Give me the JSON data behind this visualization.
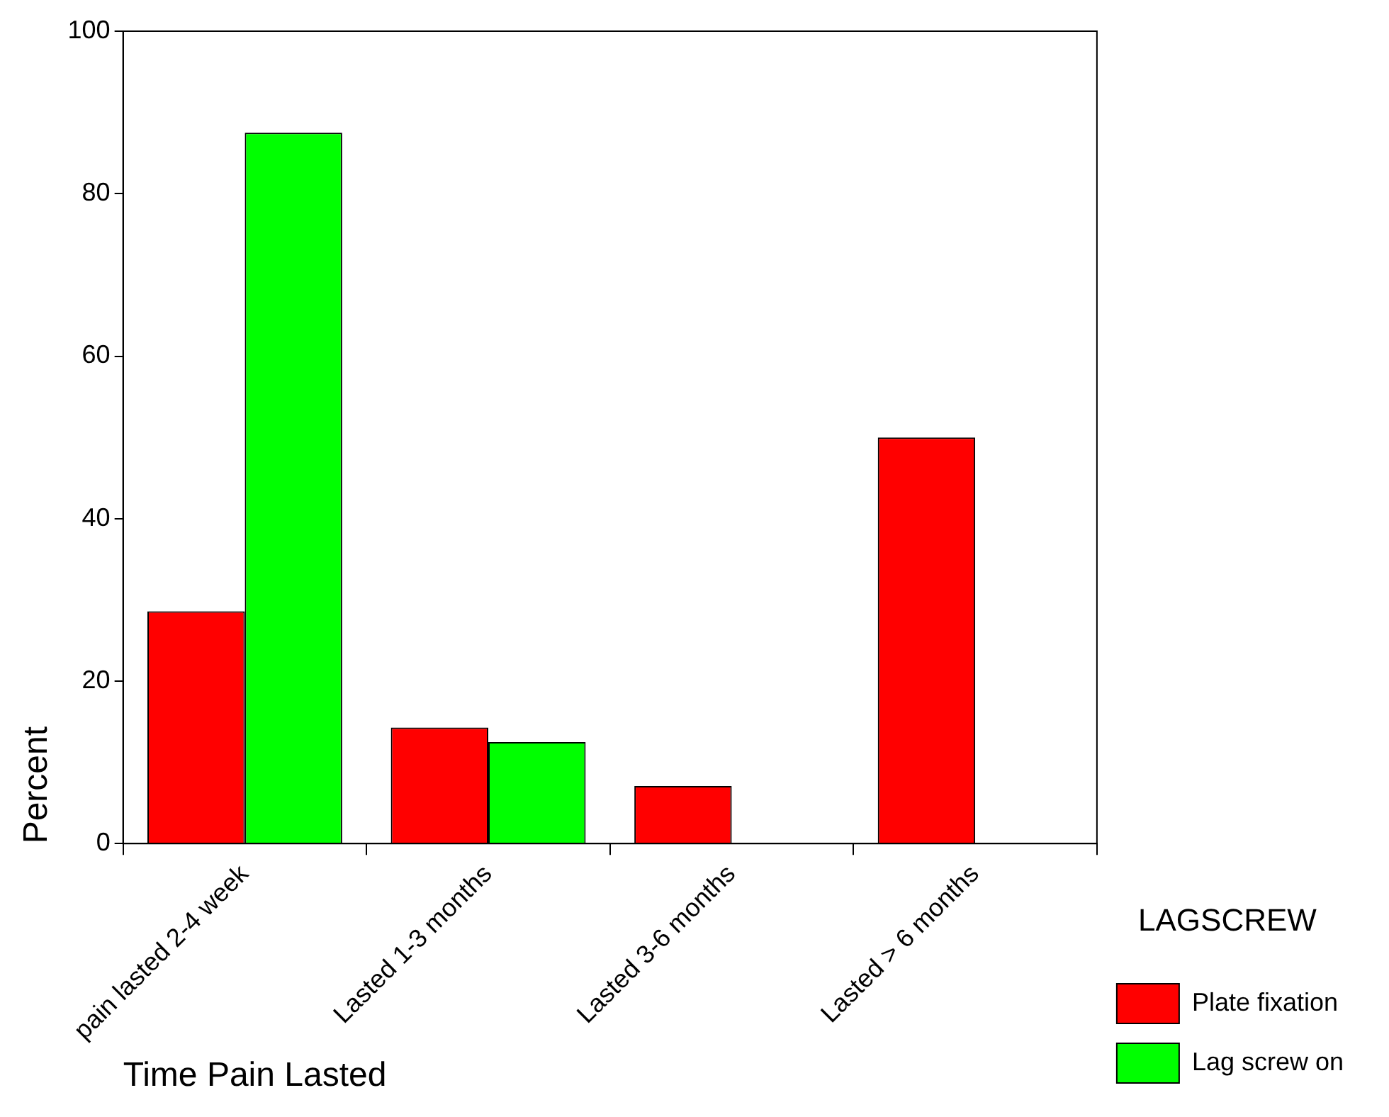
{
  "chart_data": {
    "type": "bar",
    "categories": [
      "pain lasted 2-4 week",
      "Lasted 1-3 months",
      "Lasted 3-6 months",
      "Lasted > 6 months"
    ],
    "series": [
      {
        "name": "Plate fixation",
        "color": "#ff0000",
        "values": [
          28.6,
          14.3,
          7.1,
          50.0
        ]
      },
      {
        "name": "Lag screw on",
        "color": "#00ff00",
        "values": [
          87.5,
          12.5,
          0,
          0
        ]
      }
    ],
    "xlabel": "Time Pain Lasted",
    "ylabel": "Percent",
    "legend_title": "LAGSCREW",
    "ylim": [
      0,
      100
    ],
    "yticks": [
      0,
      20,
      40,
      60,
      80,
      100
    ],
    "grid": false,
    "legend": "right"
  }
}
